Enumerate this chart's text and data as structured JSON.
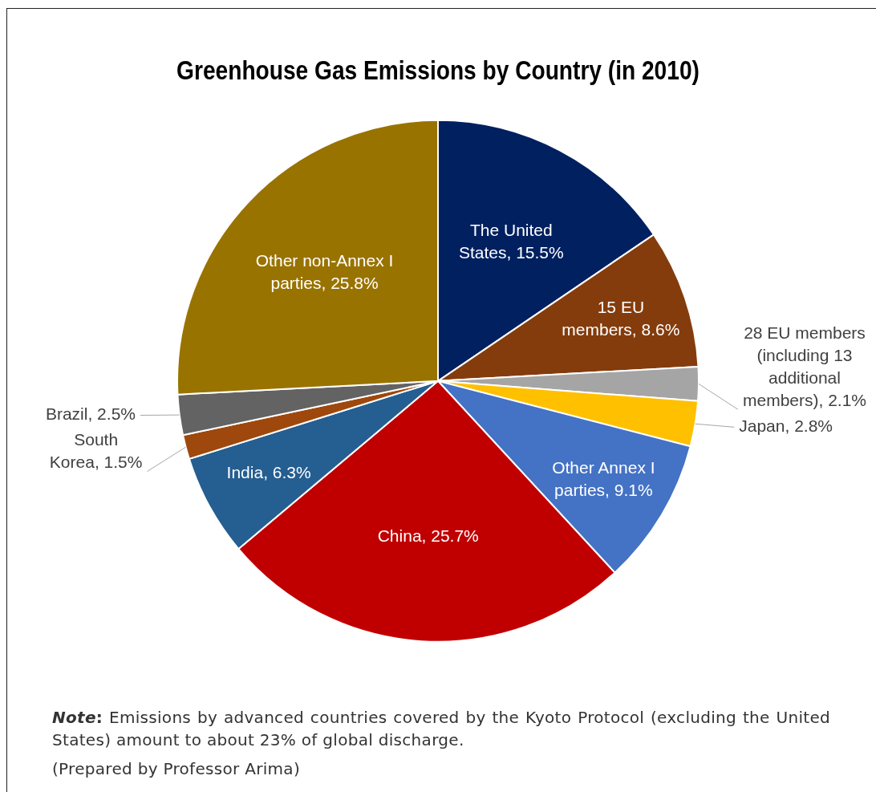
{
  "chart_data": {
    "type": "pie",
    "title": "Greenhouse Gas Emissions by Country (in 2010)",
    "categories": [
      "The United States",
      "15 EU members",
      "28 EU members (including 13 additional members)",
      "Japan",
      "Other Annex I parties",
      "China",
      "India",
      "South Korea",
      "Brazil",
      "Other non-Annex I parties"
    ],
    "values": [
      15.5,
      8.6,
      2.1,
      2.8,
      9.1,
      25.7,
      6.3,
      1.5,
      2.5,
      25.8
    ],
    "value_labels": [
      "15.5%",
      "8.6%",
      "2.1%",
      "2.8%",
      "9.1%",
      "25.7%",
      "6.3%",
      "1.5%",
      "2.5%",
      "25.8%"
    ],
    "colors": [
      "#002060",
      "#843c0c",
      "#a5a5a5",
      "#ffc000",
      "#4472c4",
      "#c00000",
      "#255e91",
      "#9e480e",
      "#636363",
      "#997300"
    ],
    "legend": false,
    "annotations": [
      "Note: Emissions by advanced countries covered by the Kyoto Protocol (excluding the United States) amount to about 23% of global discharge.",
      "(Prepared by Professor Arima)"
    ]
  }
}
